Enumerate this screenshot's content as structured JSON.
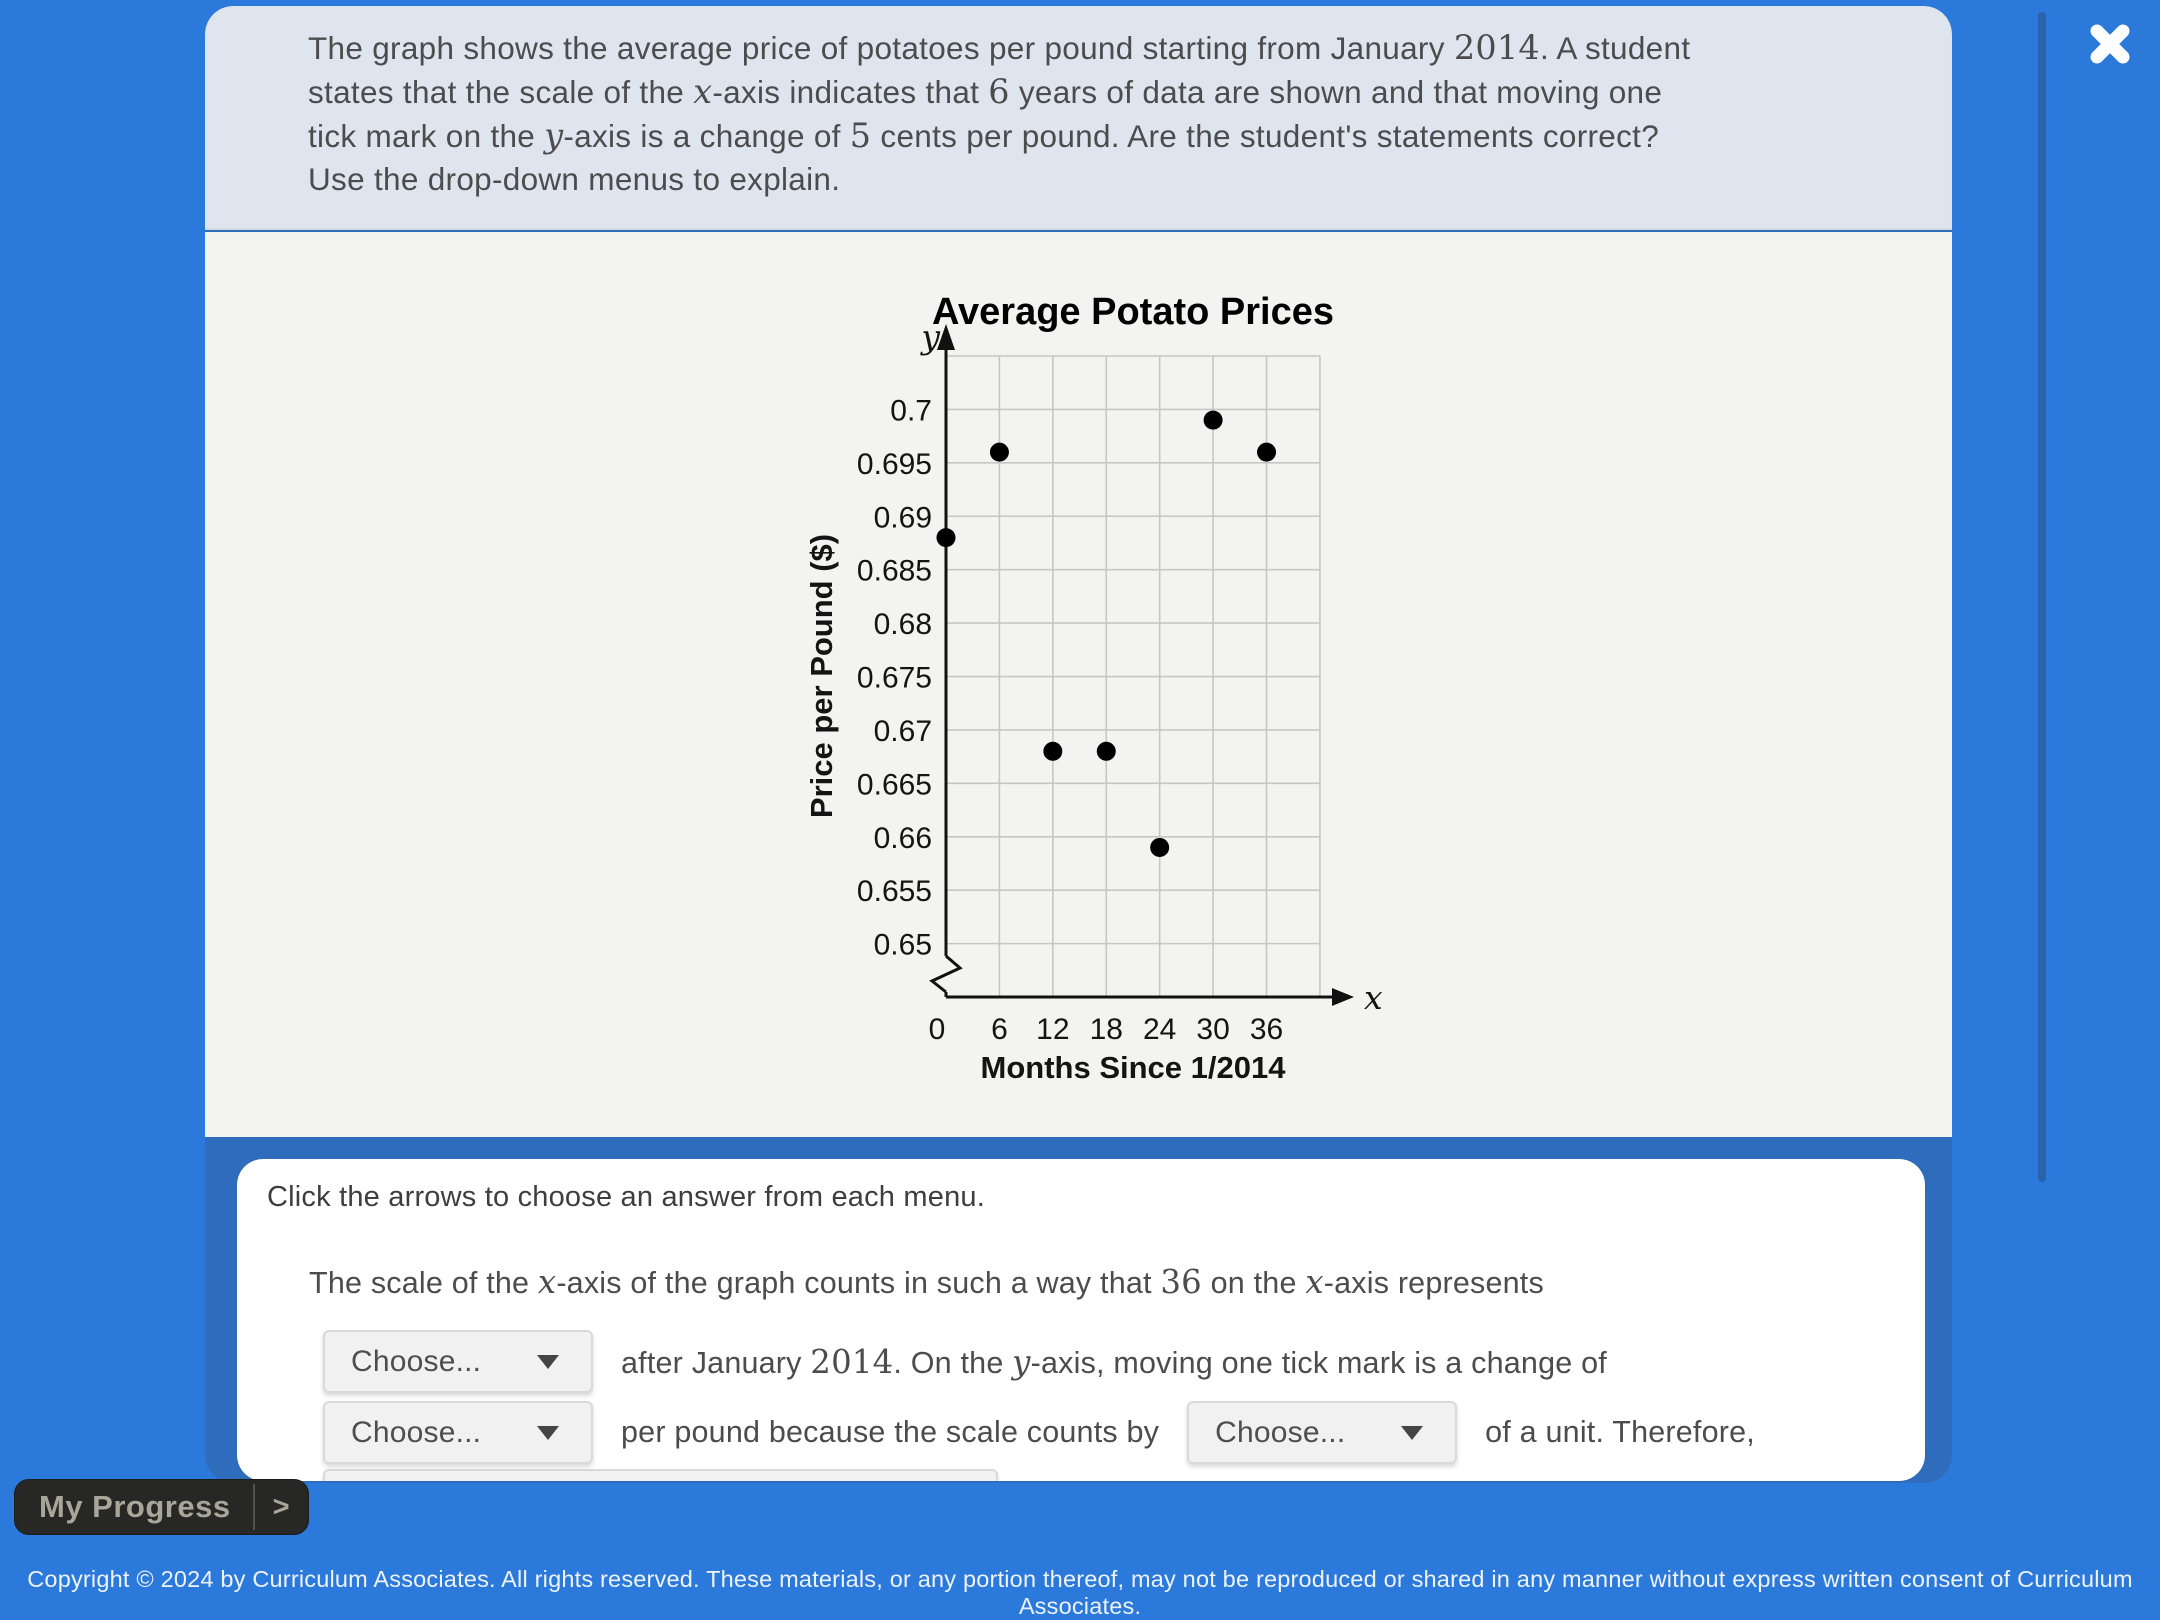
{
  "colors": {
    "page_bg": "#2b79da",
    "module_bg": "#2f6cbb",
    "header_bg": "#dee5ef",
    "panel_bg": "#f3f3f1",
    "card_bg": "#ffffff",
    "text_dark": "#4c4c4c",
    "dropdown_bg": "#f1f1f1",
    "dropdown_border": "#d9d9d9",
    "progress_bg": "#272725",
    "progress_text": "#a6a699",
    "scrollbar": "#2a62ac",
    "copyright_text": "#eef3fa"
  },
  "header": {
    "question_segments": [
      {
        "t": "The graph shows the average price of potatoes per pound starting from January "
      },
      {
        "m": "2014"
      },
      {
        "t": ". A student"
      },
      {
        "br": true
      },
      {
        "t": "states that the scale of the "
      },
      {
        "mi": "x"
      },
      {
        "t": "-axis indicates that "
      },
      {
        "m": "6"
      },
      {
        "t": " years of data are shown and that moving one"
      },
      {
        "br": true
      },
      {
        "t": "tick mark on the "
      },
      {
        "mi": "y"
      },
      {
        "t": "-axis is a change of "
      },
      {
        "m": "5"
      },
      {
        "t": " cents per pound. Are the student's statements correct?"
      },
      {
        "br": true
      },
      {
        "t": "Use the drop-down menus to explain."
      }
    ]
  },
  "chart_data": {
    "type": "scatter",
    "title": "Average Potato Prices",
    "x_axis_label": "Months Since 1/2014",
    "y_axis_label": "Price per Pound ($)",
    "x_var": "x",
    "y_var": "y",
    "origin_label": "0",
    "x_ticks": [
      6,
      12,
      18,
      24,
      30,
      36
    ],
    "y_ticks": [
      0.7,
      0.695,
      0.69,
      0.685,
      0.68,
      0.675,
      0.67,
      0.665,
      0.66,
      0.655,
      0.65
    ],
    "y_max_gridline": 0.705,
    "x_max_gridline": 42,
    "x_grid_step": 6,
    "y_grid_step": 0.005,
    "y_axis_break": true,
    "grid": true,
    "legend": false,
    "point_color": "#000000",
    "grid_color": "#c6c6c6",
    "points": [
      {
        "x": 0,
        "y": 0.688
      },
      {
        "x": 6,
        "y": 0.696
      },
      {
        "x": 12,
        "y": 0.668
      },
      {
        "x": 18,
        "y": 0.668
      },
      {
        "x": 24,
        "y": 0.659
      },
      {
        "x": 30,
        "y": 0.699
      },
      {
        "x": 36,
        "y": 0.696
      }
    ]
  },
  "answer_card": {
    "instructions": "Click the arrows to choose an answer from each menu.",
    "sentence_segments": [
      {
        "t": "The scale of the "
      },
      {
        "mi": "x"
      },
      {
        "t": "-axis of the graph counts in such a way that "
      },
      {
        "m": "36"
      },
      {
        "t": " on the "
      },
      {
        "mi": "x"
      },
      {
        "t": "-axis represents"
      }
    ],
    "dropdown1_label": "Choose...",
    "row1_segments": [
      {
        "t": "after January "
      },
      {
        "m": "2014"
      },
      {
        "t": ". On the "
      },
      {
        "mi": "y"
      },
      {
        "t": "-axis, moving one tick mark is a change of"
      }
    ],
    "dropdown2_label": "Choose...",
    "row2_mid_segments": [
      {
        "t": "per pound because the scale counts by"
      }
    ],
    "dropdown3_label": "Choose...",
    "row2_end_segments": [
      {
        "t": "of a unit. Therefore,"
      }
    ],
    "dropdown4_label": ""
  },
  "footer": {
    "my_progress_label": "My Progress",
    "chevron_label": ">",
    "copyright": "Copyright © 2024 by Curriculum Associates. All rights reserved. These materials, or any portion thereof, may not be reproduced or shared in any manner without express written consent of Curriculum Associates."
  }
}
